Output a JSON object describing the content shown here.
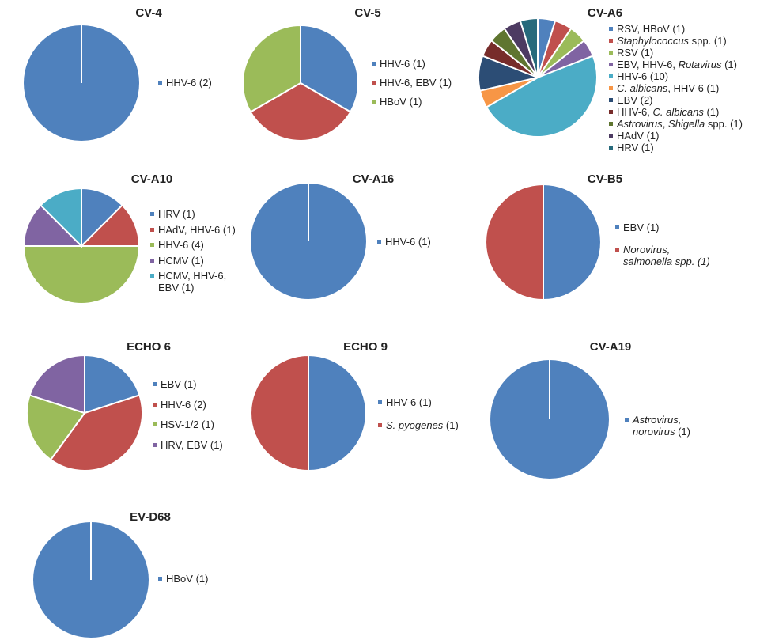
{
  "chart_data": [
    {
      "type": "pie",
      "title": "CV-4",
      "slices": [
        {
          "label": [
            {
              "t": "HHV-6 (2)"
            }
          ],
          "value": 2,
          "color": "#4f81bd"
        }
      ]
    },
    {
      "type": "pie",
      "title": "CV-5",
      "slices": [
        {
          "label": [
            {
              "t": "HHV-6 (1)"
            }
          ],
          "value": 1,
          "color": "#4f81bd"
        },
        {
          "label": [
            {
              "t": "HHV-6, EBV (1)"
            }
          ],
          "value": 1,
          "color": "#c0504d"
        },
        {
          "label": [
            {
              "t": "HBoV (1)"
            }
          ],
          "value": 1,
          "color": "#9bbb59"
        }
      ]
    },
    {
      "type": "pie",
      "title": "CV-A6",
      "slices": [
        {
          "label": [
            {
              "t": "RSV, HBoV (1)"
            }
          ],
          "value": 1,
          "color": "#4f81bd"
        },
        {
          "label": [
            {
              "t": "Staphylococcus",
              "i": true
            },
            {
              "t": " spp. (1)"
            }
          ],
          "value": 1,
          "color": "#c0504d"
        },
        {
          "label": [
            {
              "t": "RSV (1)"
            }
          ],
          "value": 1,
          "color": "#9bbb59"
        },
        {
          "label": [
            {
              "t": "EBV, HHV-6, "
            },
            {
              "t": "Rotavirus",
              "i": true
            },
            {
              "t": " (1)"
            }
          ],
          "value": 1,
          "color": "#8064a2"
        },
        {
          "label": [
            {
              "t": "HHV-6 (10)"
            }
          ],
          "value": 10,
          "color": "#4bacc6"
        },
        {
          "label": [
            {
              "t": "C. albicans",
              "i": true
            },
            {
              "t": ", HHV-6 (1)"
            }
          ],
          "value": 1,
          "color": "#f79646"
        },
        {
          "label": [
            {
              "t": "EBV (2)"
            }
          ],
          "value": 2,
          "color": "#2c4d75"
        },
        {
          "label": [
            {
              "t": "HHV-6, "
            },
            {
              "t": "C. albicans",
              "i": true
            },
            {
              "t": " (1)"
            }
          ],
          "value": 1,
          "color": "#772c2a"
        },
        {
          "label": [
            {
              "t": "Astrovirus",
              "i": true
            },
            {
              "t": ", "
            },
            {
              "t": "Shigella",
              "i": true
            },
            {
              "t": " spp. (1)"
            }
          ],
          "value": 1,
          "color": "#5f7530"
        },
        {
          "label": [
            {
              "t": "HAdV (1)"
            }
          ],
          "value": 1,
          "color": "#4d3b62"
        },
        {
          "label": [
            {
              "t": "HRV (1)"
            }
          ],
          "value": 1,
          "color": "#276a7c"
        }
      ]
    },
    {
      "type": "pie",
      "title": "CV-A10",
      "slices": [
        {
          "label": [
            {
              "t": "HRV (1)"
            }
          ],
          "value": 1,
          "color": "#4f81bd"
        },
        {
          "label": [
            {
              "t": "HAdV, HHV-6 (1)"
            }
          ],
          "value": 1,
          "color": "#c0504d"
        },
        {
          "label": [
            {
              "t": "HHV-6 (4)"
            }
          ],
          "value": 4,
          "color": "#9bbb59"
        },
        {
          "label": [
            {
              "t": "HCMV (1)"
            }
          ],
          "value": 1,
          "color": "#8064a2"
        },
        {
          "label": [
            {
              "t": "HCMV, HHV-6,\nEBV (1)"
            }
          ],
          "value": 1,
          "color": "#4bacc6"
        }
      ]
    },
    {
      "type": "pie",
      "title": "CV-A16",
      "slices": [
        {
          "label": [
            {
              "t": "HHV-6 (1)"
            }
          ],
          "value": 1,
          "color": "#4f81bd"
        }
      ]
    },
    {
      "type": "pie",
      "title": "CV-B5",
      "slices": [
        {
          "label": [
            {
              "t": "EBV (1)"
            }
          ],
          "value": 1,
          "color": "#4f81bd"
        },
        {
          "label": [
            {
              "t": "Norovirus,\nsalmonella spp. (1)",
              "i": true
            }
          ],
          "value": 1,
          "color": "#c0504d"
        }
      ]
    },
    {
      "type": "pie",
      "title": "ECHO 6",
      "slices": [
        {
          "label": [
            {
              "t": "EBV (1)"
            }
          ],
          "value": 1,
          "color": "#4f81bd"
        },
        {
          "label": [
            {
              "t": "HHV-6 (2)"
            }
          ],
          "value": 2,
          "color": "#c0504d"
        },
        {
          "label": [
            {
              "t": "HSV-1/2 (1)"
            }
          ],
          "value": 1,
          "color": "#9bbb59"
        },
        {
          "label": [
            {
              "t": "HRV, EBV (1)"
            }
          ],
          "value": 1,
          "color": "#8064a2"
        }
      ]
    },
    {
      "type": "pie",
      "title": "ECHO 9",
      "slices": [
        {
          "label": [
            {
              "t": "HHV-6 (1)"
            }
          ],
          "value": 1,
          "color": "#4f81bd"
        },
        {
          "label": [
            {
              "t": "S. pyogenes",
              "i": true
            },
            {
              "t": " (1)"
            }
          ],
          "value": 1,
          "color": "#c0504d"
        }
      ]
    },
    {
      "type": "pie",
      "title": "CV-A19",
      "slices": [
        {
          "label": [
            {
              "t": "Astrovirus,\nnorovirus",
              "i": true
            },
            {
              "t": " (1)"
            }
          ],
          "value": 1,
          "color": "#4f81bd"
        }
      ]
    },
    {
      "type": "pie",
      "title": "EV-D68",
      "slices": [
        {
          "label": [
            {
              "t": "HBoV (1)"
            }
          ],
          "value": 1,
          "color": "#4f81bd"
        }
      ]
    }
  ]
}
